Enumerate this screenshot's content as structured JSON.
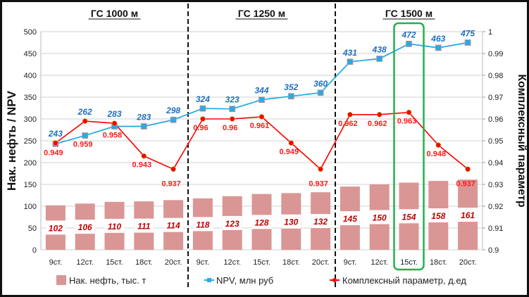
{
  "chart_data": {
    "type": "bar+line",
    "groups": [
      "ГС 1000 м",
      "ГС 1250 м",
      "ГС 1500 м"
    ],
    "categories": [
      "9ст.",
      "12ст.",
      "15ст.",
      "18ст.",
      "20ст.",
      "9ст.",
      "12ст.",
      "15ст.",
      "18ст.",
      "20ст.",
      "9ст.",
      "12ст.",
      "15ст.",
      "18ст.",
      "20ст."
    ],
    "series": [
      {
        "name": "Нак. нефть, тыс. т",
        "type": "bar",
        "axis": "left",
        "color": "#d99694",
        "values": [
          102,
          106,
          110,
          111,
          114,
          118,
          123,
          128,
          130,
          132,
          145,
          150,
          154,
          158,
          161
        ]
      },
      {
        "name": "NPV, млн руб",
        "type": "line",
        "axis": "left",
        "color": "#29abe2",
        "values": [
          243,
          262,
          283,
          283,
          298,
          324,
          323,
          344,
          352,
          360,
          431,
          438,
          472,
          463,
          475
        ]
      },
      {
        "name": "Комплексный параметр, д.ед",
        "type": "line",
        "axis": "right",
        "color": "#ff0000",
        "values": [
          0.949,
          0.959,
          0.958,
          0.943,
          0.937,
          0.96,
          0.96,
          0.961,
          0.949,
          0.937,
          0.962,
          0.962,
          0.963,
          0.948,
          0.937
        ]
      }
    ],
    "ylabel": "Нак. нефть / NPV",
    "y2label": "Комплексный параметр",
    "ylim": [
      0,
      500
    ],
    "yticks": [
      "0",
      "50",
      "100",
      "150",
      "200",
      "250",
      "300",
      "350",
      "400",
      "450",
      "500"
    ],
    "y2lim": [
      0.9,
      1
    ],
    "y2ticks": [
      "0.9",
      "0.91",
      "0.92",
      "0.93",
      "0.94",
      "0.95",
      "0.96",
      "0.97",
      "0.98",
      "0.99",
      "1"
    ],
    "highlight_index": 12,
    "grid": true,
    "legend_position": "bottom"
  }
}
